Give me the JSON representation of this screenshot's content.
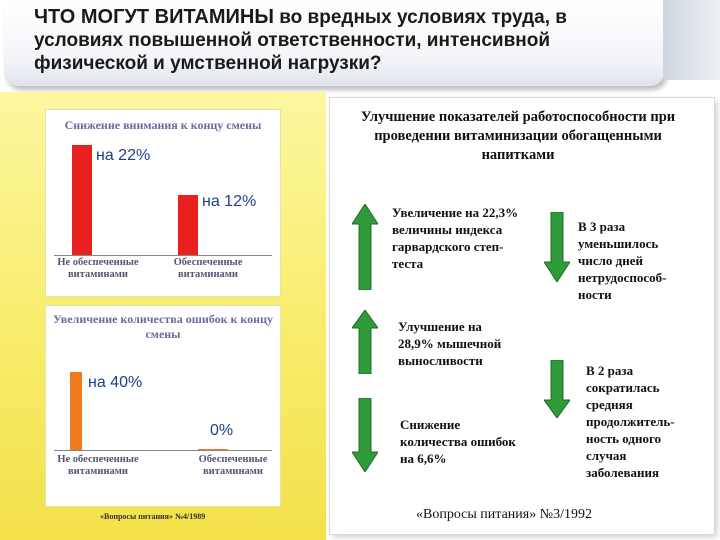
{
  "title": {
    "line1_caps": "ЧТО МОГУТ ВИТАМИНЫ",
    "line1_rest": " во вредных условиях труда, в",
    "line2": "условиях повышенной ответственности, интенсивной",
    "line3": "физической и умственной нагрузки?"
  },
  "chart_data": [
    {
      "type": "bar",
      "title": "Снижение внимания к концу смены",
      "categories": [
        "Не обеспеченные витаминами",
        "Обеспеченные витаминами"
      ],
      "values": [
        22,
        12
      ],
      "data_labels": [
        "на 22%",
        "на 12%"
      ],
      "colors": [
        "#e8211f",
        "#e8211f"
      ]
    },
    {
      "type": "bar",
      "title": "Увеличение количества ошибок к концу смены",
      "categories": [
        "Не обеспеченные витаминами",
        "Обеспеченные витаминами"
      ],
      "values": [
        40,
        0
      ],
      "data_labels": [
        "на 40%",
        "0%"
      ],
      "colors": [
        "#f07a1e",
        "#f07a1e"
      ]
    }
  ],
  "left_source": "«Вопросы питания» №4/1989",
  "right": {
    "title": "Улучшение показателей работоспособности при проведении витаминизации обогащенными напитками",
    "items": [
      {
        "direction": "up",
        "text": "Увеличение на 22,3% величины индекса гарвардского степ-теста"
      },
      {
        "direction": "up",
        "text": "Улучшение на 28,9% мышечной выносливости"
      },
      {
        "direction": "down",
        "text": "Снижение количества ошибок на 6,6%"
      },
      {
        "direction": "down",
        "text": "В 3 раза уменьшилось число дней нетрудоспособ-ности"
      },
      {
        "direction": "down",
        "text": "В 2 раза сократилась средняя продолжитель-ность одного случая заболевания"
      }
    ],
    "source": "«Вопросы питания» №3/1992"
  },
  "colors": {
    "arrow_green": "#2e9a3a",
    "panel_yellow": "#f8ec6a",
    "bar_red": "#e8211f",
    "bar_orange": "#f07a1e",
    "label_blue": "#1f3f8a"
  }
}
